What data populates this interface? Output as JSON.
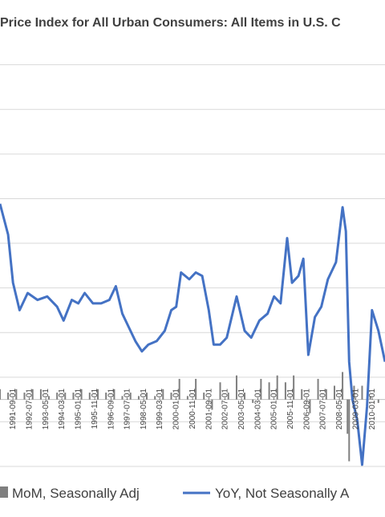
{
  "chart_data": {
    "type": "bar+line",
    "title": "Price Index for All Urban Consumers: All Items in U.S. C",
    "x_tick_labels": [
      "1991-09-01",
      "1992-07-01",
      "1993-05-01",
      "1994-03-01",
      "1995-01-01",
      "1995-11-01",
      "1996-09-01",
      "1997-07-01",
      "1998-05-01",
      "1999-03-01",
      "2000-01-01",
      "2000-11-01",
      "2001-09-01",
      "2002-07-01",
      "2003-05-01",
      "2004-03-01",
      "2005-01-01",
      "2005-11-01",
      "2006-09-01",
      "2007-07-01",
      "2008-05-01",
      "2009-03-01",
      "2010-01-01"
    ],
    "x_range": [
      "1991-01-01",
      "2010-09-01"
    ],
    "y_range": [
      -1.95,
      10.35
    ],
    "gridlines": true,
    "legend_position": "bottom",
    "series": [
      {
        "name": "MoM, Seasonally Adj",
        "type": "bar",
        "color": "#7f7f7f",
        "x": [
          "1991-01-01",
          "1991-06-01",
          "1991-11-01",
          "1992-04-01",
          "1992-09-01",
          "1993-02-01",
          "1993-07-01",
          "1993-12-01",
          "1994-05-01",
          "1994-10-01",
          "1995-03-01",
          "1995-08-01",
          "1996-01-01",
          "1996-06-01",
          "1996-11-01",
          "1997-04-01",
          "1997-09-01",
          "1998-02-01",
          "1998-07-01",
          "1998-12-01",
          "1999-05-01",
          "1999-10-01",
          "2000-03-01",
          "2000-08-01",
          "2001-01-01",
          "2001-06-01",
          "2001-11-01",
          "2002-04-01",
          "2002-09-01",
          "2003-02-01",
          "2003-07-01",
          "2003-12-01",
          "2004-05-01",
          "2004-10-01",
          "2005-03-01",
          "2005-08-01",
          "2006-01-01",
          "2006-06-01",
          "2006-11-01",
          "2007-04-01",
          "2007-09-01",
          "2008-02-01",
          "2008-07-01",
          "2008-10-01",
          "2008-11-01",
          "2009-02-01",
          "2009-07-01",
          "2009-12-01",
          "2010-05-01"
        ],
        "values": [
          0.3,
          0.2,
          0.3,
          0.2,
          0.3,
          0.3,
          0.1,
          0.2,
          0.2,
          0.2,
          0.3,
          0.2,
          0.3,
          0.2,
          0.3,
          0.1,
          0.2,
          0.1,
          0.2,
          0.1,
          0.3,
          0.2,
          0.6,
          0.1,
          0.6,
          0.2,
          -0.3,
          0.5,
          0.2,
          0.7,
          0.2,
          -0.1,
          0.6,
          0.5,
          0.7,
          0.5,
          0.7,
          0.3,
          -0.4,
          0.6,
          0.3,
          0.4,
          0.8,
          -1.0,
          -1.8,
          0.4,
          0.4,
          0.1,
          -0.1
        ]
      },
      {
        "name": "YoY, Not Seasonally A",
        "type": "line",
        "color": "#4472c4",
        "x": [
          "1991-01-01",
          "1991-06-01",
          "1991-09-01",
          "1992-01-01",
          "1992-06-01",
          "1992-12-01",
          "1993-06-01",
          "1993-12-01",
          "1994-04-01",
          "1994-09-01",
          "1995-01-01",
          "1995-05-01",
          "1995-10-01",
          "1996-03-01",
          "1996-08-01",
          "1996-12-01",
          "1997-04-01",
          "1997-07-01",
          "1997-12-01",
          "1998-04-01",
          "1998-08-01",
          "1999-01-01",
          "1999-06-01",
          "1999-10-01",
          "2000-01-01",
          "2000-04-01",
          "2000-09-01",
          "2001-01-01",
          "2001-05-01",
          "2001-09-01",
          "2001-12-01",
          "2002-04-01",
          "2002-08-01",
          "2003-02-01",
          "2003-07-01",
          "2003-11-01",
          "2004-04-01",
          "2004-09-01",
          "2005-01-01",
          "2005-05-01",
          "2005-09-01",
          "2005-12-01",
          "2006-04-01",
          "2006-07-01",
          "2006-10-01",
          "2007-02-01",
          "2007-06-01",
          "2007-10-01",
          "2008-03-01",
          "2008-07-01",
          "2008-09-01",
          "2008-11-01",
          "2009-01-01",
          "2009-04-01",
          "2009-07-01",
          "2009-10-01",
          "2010-01-01",
          "2010-05-01",
          "2010-09-01"
        ],
        "values": [
          5.7,
          4.8,
          3.4,
          2.6,
          3.1,
          2.9,
          3.0,
          2.7,
          2.3,
          2.9,
          2.8,
          3.1,
          2.8,
          2.8,
          2.9,
          3.3,
          2.5,
          2.2,
          1.7,
          1.4,
          1.6,
          1.7,
          2.0,
          2.6,
          2.7,
          3.7,
          3.5,
          3.7,
          3.6,
          2.6,
          1.6,
          1.6,
          1.8,
          3.0,
          2.0,
          1.8,
          2.3,
          2.5,
          3.0,
          2.8,
          4.7,
          3.4,
          3.6,
          4.1,
          1.3,
          2.4,
          2.7,
          3.5,
          4.0,
          5.6,
          4.9,
          1.1,
          0.0,
          -0.6,
          -1.9,
          -0.2,
          2.6,
          2.0,
          1.1
        ]
      }
    ]
  }
}
